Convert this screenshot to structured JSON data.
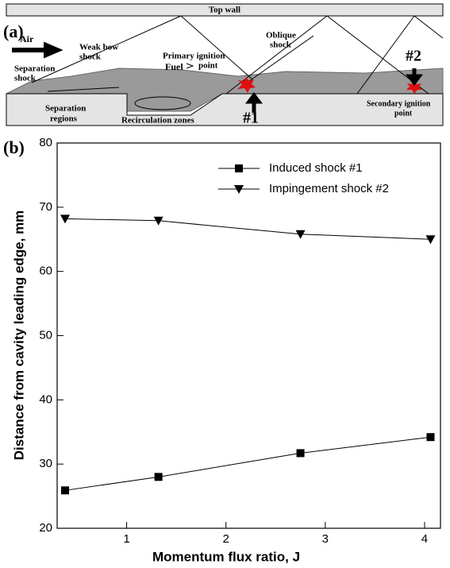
{
  "panel_a": {
    "label": "(a)",
    "top_wall": "Top wall",
    "air": "Air",
    "weak_bow_shock": [
      "Weak bow",
      "shock"
    ],
    "separation_shock": [
      "Separation",
      "shock"
    ],
    "separation_regions": [
      "Separation",
      "regions"
    ],
    "fuel": "Fuel",
    "recirculation_zones": "Recirculation zones",
    "primary_ignition_point": [
      "Primary ignition",
      "point"
    ],
    "oblique_shock": [
      "Oblique",
      "shock"
    ],
    "marker_1": "#1",
    "marker_2": "#2",
    "secondary_ignition_point": [
      "Secondary ignition",
      "point"
    ]
  },
  "chart_data": {
    "type": "line",
    "panel_label": "(b)",
    "x_label": "Momentum flux ratio, J",
    "y_label": "Distance from cavity leading edge, mm",
    "xlim": [
      0.3,
      4.16
    ],
    "ylim": [
      20,
      80
    ],
    "xticks": [
      1,
      2,
      3,
      4
    ],
    "yticks": [
      20,
      30,
      40,
      50,
      60,
      70,
      80
    ],
    "grid": false,
    "legend": "top-right",
    "series": [
      {
        "name": "Induced shock #1",
        "color": "#000000",
        "marker": "square",
        "x": [
          0.38,
          1.32,
          2.75,
          4.06
        ],
        "values": [
          25.9,
          28.0,
          31.7,
          34.2
        ]
      },
      {
        "name": "Impingement shock #2",
        "color": "#000000",
        "marker": "triangle-down",
        "x": [
          0.38,
          1.32,
          2.75,
          4.06
        ],
        "values": [
          68.2,
          67.9,
          65.8,
          65.0
        ]
      }
    ]
  }
}
